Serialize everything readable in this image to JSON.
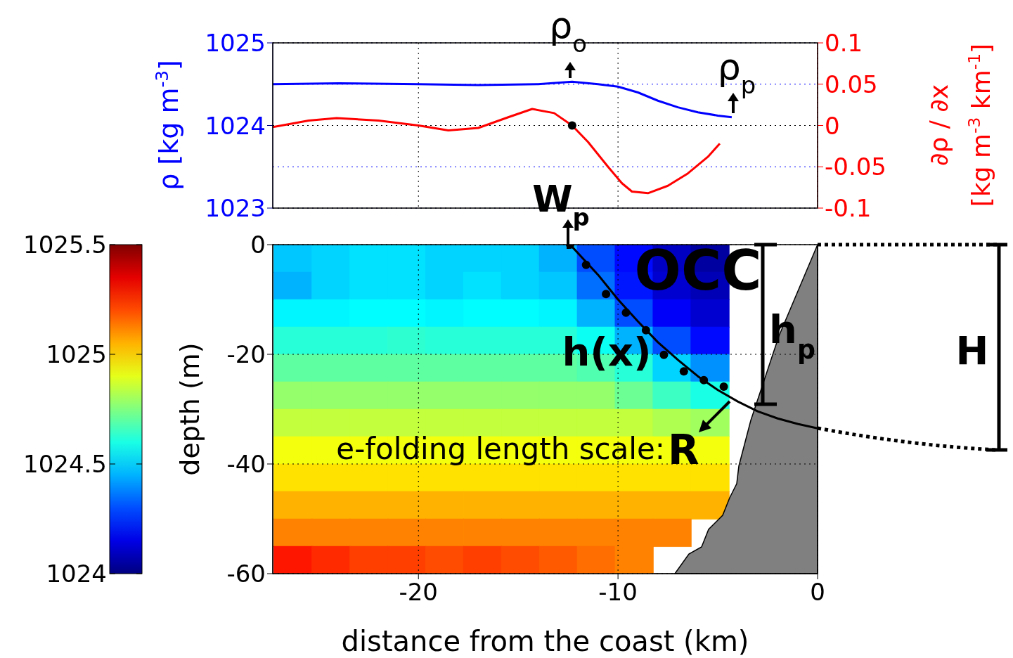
{
  "chart_data": [
    {
      "type": "line",
      "xlim": [
        -27.3,
        0
      ],
      "xticks": [
        -20,
        -10,
        0
      ],
      "ylim": [
        1023,
        1025
      ],
      "yticks": [
        1023,
        1024,
        1025
      ],
      "y2lim": [
        -0.1,
        0.1
      ],
      "y2ticks": [
        -0.1,
        -0.05,
        0,
        0.05,
        0.1
      ],
      "ylabel": "ρ [kg m$^{-3}$]",
      "y2label": "∂ρ / ∂x [kg m$^{-3}$ km$^{-1}$]",
      "grid": true,
      "tick_labels": "y",
      "series": [
        {
          "type": "line",
          "axis": "y",
          "color": "#0000ff",
          "x": [
            -27.3,
            -24,
            -20,
            -17,
            -14,
            -12.3,
            -11,
            -10,
            -9,
            -8,
            -7,
            -6,
            -5,
            -4.3
          ],
          "values": [
            1024.5,
            1024.51,
            1024.5,
            1024.49,
            1024.5,
            1024.53,
            1024.5,
            1024.47,
            1024.4,
            1024.3,
            1024.22,
            1024.16,
            1024.12,
            1024.1
          ]
        },
        {
          "type": "line",
          "axis": "y2",
          "color": "#ff0000",
          "x": [
            -27.3,
            -25.5,
            -24.1,
            -22,
            -20,
            -18.5,
            -17,
            -15.5,
            -14.3,
            -13.2,
            -12.3,
            -11.5,
            -10.5,
            -9.8,
            -9.3,
            -8.5,
            -7.5,
            -6.5,
            -5.5,
            -4.9
          ],
          "values": [
            -0.002,
            0.006,
            0.009,
            0.006,
            0,
            -0.006,
            -0.003,
            0.01,
            0.02,
            0.015,
            0,
            -0.02,
            -0.05,
            -0.07,
            -0.08,
            -0.082,
            -0.073,
            -0.058,
            -0.038,
            -0.022
          ]
        },
        {
          "type": "scatter",
          "axis": "y2",
          "color": "#000000",
          "marker": "circle",
          "x": [
            -12.3
          ],
          "values": [
            0
          ]
        }
      ],
      "annotations": [
        "ρ$_{o}$",
        "ρ$_{p}$",
        "W$_{p}$"
      ]
    },
    {
      "type": "heatmap",
      "xlabel": "distance from the coast (km)",
      "ylabel": "depth (m)",
      "xlim": [
        -27.3,
        0
      ],
      "xticks": [
        -20,
        -10,
        0
      ],
      "ylim": [
        -60,
        0
      ],
      "yticks": [
        -60,
        -40,
        -20,
        0
      ],
      "grid": true,
      "clim": [
        1024,
        1025.5
      ],
      "cticks": [
        1024,
        1024.5,
        1025,
        1025.5
      ],
      "x": [
        -26.3,
        -24.4,
        -22.5,
        -20.6,
        -18.7,
        -16.8,
        -14.9,
        -13.0,
        -11.1,
        -9.2,
        -7.3,
        -5.4
      ],
      "y": [
        -2.5,
        -7.5,
        -12.5,
        -17.5,
        -22.5,
        -27.5,
        -32.5,
        -37.5,
        -42.5,
        -47.5,
        -52.5,
        -57.5
      ],
      "cells": [
        [
          1024.48,
          1024.5,
          1024.52,
          1024.52,
          1024.5,
          1024.5,
          1024.5,
          1024.45,
          1024.3,
          1024.2,
          1024.1,
          1024.05
        ],
        [
          1024.45,
          1024.5,
          1024.52,
          1024.52,
          1024.5,
          1024.52,
          1024.5,
          1024.48,
          1024.35,
          1024.22,
          1024.12,
          1024.08
        ],
        [
          1024.55,
          1024.55,
          1024.56,
          1024.56,
          1024.55,
          1024.56,
          1024.56,
          1024.55,
          1024.45,
          1024.3,
          1024.18,
          1024.12
        ],
        [
          1024.62,
          1024.62,
          1024.62,
          1024.63,
          1024.62,
          1024.62,
          1024.62,
          1024.62,
          1024.58,
          1024.45,
          1024.3,
          1024.2
        ],
        [
          1024.7,
          1024.7,
          1024.7,
          1024.7,
          1024.7,
          1024.7,
          1024.7,
          1024.7,
          1024.68,
          1024.62,
          1024.5,
          1024.4
        ],
        [
          1024.78,
          1024.78,
          1024.78,
          1024.78,
          1024.78,
          1024.78,
          1024.78,
          1024.78,
          1024.78,
          1024.72,
          1024.65,
          1024.6
        ],
        [
          1024.85,
          1024.85,
          1024.85,
          1024.85,
          1024.85,
          1024.85,
          1024.85,
          1024.85,
          1024.85,
          1024.85,
          1024.82,
          1024.8
        ],
        [
          1024.92,
          1024.92,
          1024.92,
          1024.92,
          1024.92,
          1024.92,
          1024.92,
          1024.92,
          1024.92,
          1024.92,
          1024.92,
          1024.92
        ],
        [
          1024.98,
          1024.98,
          1024.98,
          1024.98,
          1024.98,
          1024.98,
          1024.98,
          1024.98,
          1024.98,
          1024.98,
          1024.98,
          1024.98
        ],
        [
          1025.05,
          1025.05,
          1025.05,
          1025.05,
          1025.05,
          1025.05,
          1025.05,
          1025.05,
          1025.05,
          1025.05,
          1025.05,
          1025.05
        ],
        [
          1025.12,
          1025.12,
          1025.12,
          1025.12,
          1025.12,
          1025.12,
          1025.12,
          1025.12,
          1025.12,
          1025.12,
          1025.12,
          null
        ],
        [
          1025.28,
          1025.25,
          1025.22,
          1025.22,
          1025.2,
          1025.22,
          1025.2,
          1025.18,
          1025.15,
          1025.12,
          null,
          null
        ]
      ],
      "series": [
        {
          "type": "scatter",
          "color": "#000000",
          "marker": "circle",
          "x": [
            -12.4,
            -11.6,
            -10.6,
            -9.6,
            -8.6,
            -7.7,
            -6.7,
            -5.7,
            -4.7
          ],
          "values": [
            0,
            -3.7,
            -9.0,
            -12.4,
            -15.6,
            -20.1,
            -23.1,
            -24.7,
            -25.9
          ]
        },
        {
          "type": "line",
          "color": "#000000",
          "x": [
            -12.4,
            -11,
            -10,
            -9,
            -8,
            -7,
            -6,
            -5,
            -4,
            -3,
            -2,
            -1,
            0
          ],
          "values": [
            0,
            -5.5,
            -10,
            -14,
            -17.8,
            -21,
            -24,
            -26.5,
            -28.6,
            -30.4,
            -31.7,
            -32.7,
            -33.5
          ]
        }
      ],
      "annotations": [
        "OCC",
        "h(x)",
        "h$_{p}$",
        "H",
        "e-folding length scale:",
        "R"
      ]
    }
  ]
}
